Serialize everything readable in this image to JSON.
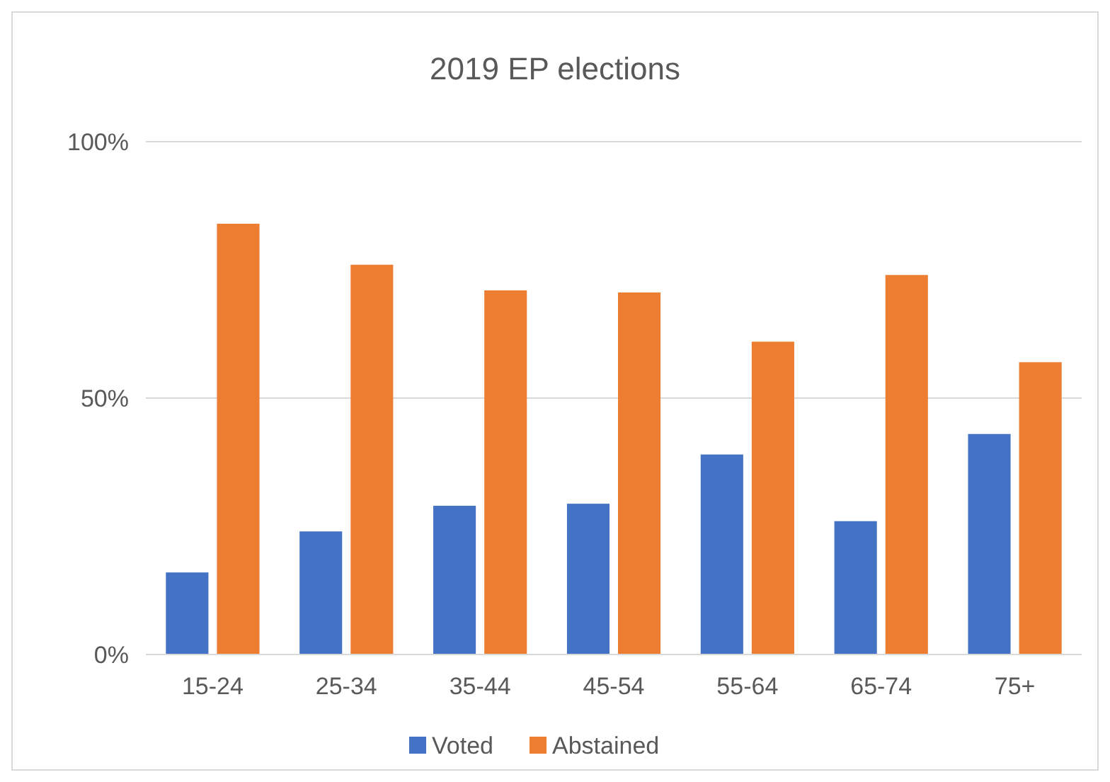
{
  "chart_data": {
    "type": "bar",
    "title": "2019 EP elections",
    "categories": [
      "15-24",
      "25-34",
      "35-44",
      "45-54",
      "55-64",
      "65-74",
      "75+"
    ],
    "series": [
      {
        "name": "Voted",
        "color": "#4472c4",
        "values": [
          16,
          24,
          29,
          29.4,
          39,
          26,
          43
        ]
      },
      {
        "name": "Abstained",
        "color": "#ed7d31",
        "values": [
          84,
          76,
          71,
          70.6,
          61,
          74,
          57
        ]
      }
    ],
    "ylim": [
      0,
      100
    ],
    "yticks": [
      {
        "value": 0,
        "label": "0%"
      },
      {
        "value": 50,
        "label": "50%"
      },
      {
        "value": 100,
        "label": "100%"
      }
    ],
    "grid": "y",
    "legend": "bottom"
  }
}
